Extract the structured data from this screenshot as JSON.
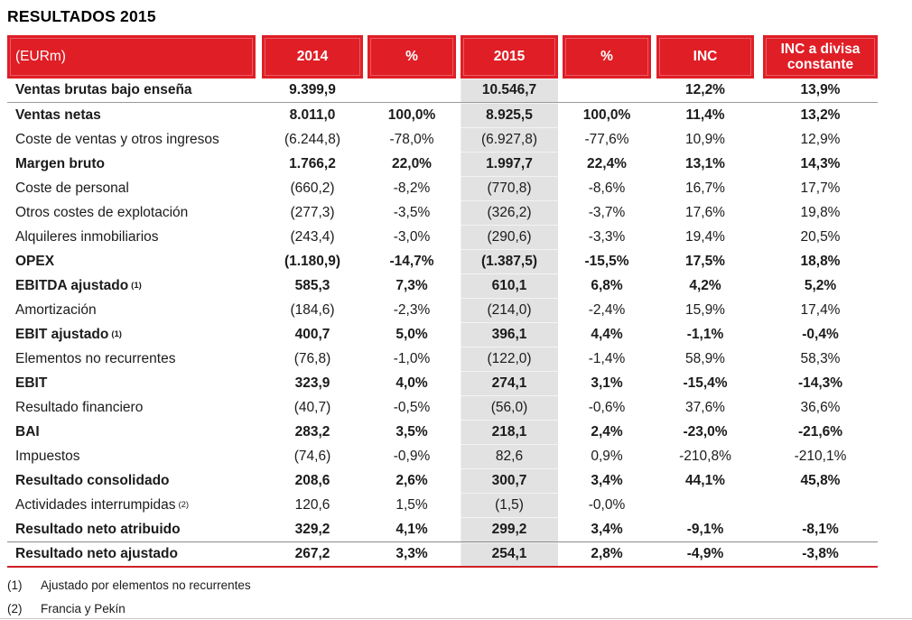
{
  "page": {
    "title": "RESULTADOS 2015"
  },
  "colors": {
    "header_red": "#e01e26",
    "band_gray": "#e2e2e2",
    "rule_red": "#d02028",
    "rule_gray": "#9b9b9b",
    "rule_dark": "#8a8a8a",
    "bottom_hairline": "#c9c9c9",
    "text": "#1b1b1b"
  },
  "table": {
    "unit_label": "(EURm)",
    "columns": [
      "2014",
      "%",
      "2015",
      "%",
      "INC",
      "INC a divisa constante"
    ],
    "rows": [
      {
        "label": "Ventas brutas bajo enseña",
        "sup": "",
        "bold": true,
        "rule_below": "gray",
        "values": [
          "9.399,9",
          "",
          "10.546,7",
          "",
          "12,2%",
          "13,9%"
        ]
      },
      {
        "label": "Ventas netas",
        "sup": "",
        "bold": true,
        "values": [
          "8.011,0",
          "100,0%",
          "8.925,5",
          "100,0%",
          "11,4%",
          "13,2%"
        ]
      },
      {
        "label": "Coste de ventas y otros ingresos",
        "sup": "",
        "bold": false,
        "values": [
          "(6.244,8)",
          "-78,0%",
          "(6.927,8)",
          "-77,6%",
          "10,9%",
          "12,9%"
        ]
      },
      {
        "label": "Margen bruto",
        "sup": "",
        "bold": true,
        "values": [
          "1.766,2",
          "22,0%",
          "1.997,7",
          "22,4%",
          "13,1%",
          "14,3%"
        ]
      },
      {
        "label": "Coste de personal",
        "sup": "",
        "bold": false,
        "values": [
          "(660,2)",
          "-8,2%",
          "(770,8)",
          "-8,6%",
          "16,7%",
          "17,7%"
        ]
      },
      {
        "label": "Otros costes de explotación",
        "sup": "",
        "bold": false,
        "values": [
          "(277,3)",
          "-3,5%",
          "(326,2)",
          "-3,7%",
          "17,6%",
          "19,8%"
        ]
      },
      {
        "label": "Alquileres inmobiliarios",
        "sup": "",
        "bold": false,
        "values": [
          "(243,4)",
          "-3,0%",
          "(290,6)",
          "-3,3%",
          "19,4%",
          "20,5%"
        ]
      },
      {
        "label": "OPEX",
        "sup": "",
        "bold": true,
        "values": [
          "(1.180,9)",
          "-14,7%",
          "(1.387,5)",
          "-15,5%",
          "17,5%",
          "18,8%"
        ]
      },
      {
        "label": "EBITDA ajustado",
        "sup": "(1)",
        "bold": true,
        "values": [
          "585,3",
          "7,3%",
          "610,1",
          "6,8%",
          "4,2%",
          "5,2%"
        ]
      },
      {
        "label": "Amortización",
        "sup": "",
        "bold": false,
        "values": [
          "(184,6)",
          "-2,3%",
          "(214,0)",
          "-2,4%",
          "15,9%",
          "17,4%"
        ]
      },
      {
        "label": "EBIT ajustado",
        "sup": "(1)",
        "bold": true,
        "values": [
          "400,7",
          "5,0%",
          "396,1",
          "4,4%",
          "-1,1%",
          "-0,4%"
        ]
      },
      {
        "label": "Elementos no recurrentes",
        "sup": "",
        "bold": false,
        "values": [
          "(76,8)",
          "-1,0%",
          "(122,0)",
          "-1,4%",
          "58,9%",
          "58,3%"
        ]
      },
      {
        "label": "EBIT",
        "sup": "",
        "bold": true,
        "values": [
          "323,9",
          "4,0%",
          "274,1",
          "3,1%",
          "-15,4%",
          "-14,3%"
        ]
      },
      {
        "label": "Resultado financiero",
        "sup": "",
        "bold": false,
        "values": [
          "(40,7)",
          "-0,5%",
          "(56,0)",
          "-0,6%",
          "37,6%",
          "36,6%"
        ]
      },
      {
        "label": "BAI",
        "sup": "",
        "bold": true,
        "values": [
          "283,2",
          "3,5%",
          "218,1",
          "2,4%",
          "-23,0%",
          "-21,6%"
        ]
      },
      {
        "label": "Impuestos",
        "sup": "",
        "bold": false,
        "values": [
          "(74,6)",
          "-0,9%",
          "82,6",
          "0,9%",
          "-210,8%",
          "-210,1%"
        ]
      },
      {
        "label": "Resultado consolidado",
        "sup": "",
        "bold": true,
        "values": [
          "208,6",
          "2,6%",
          "300,7",
          "3,4%",
          "44,1%",
          "45,8%"
        ]
      },
      {
        "label": "Actividades interrumpidas",
        "sup": "(2)",
        "bold": false,
        "values": [
          "120,6",
          "1,5%",
          "(1,5)",
          "-0,0%",
          "",
          ""
        ]
      },
      {
        "label": "Resultado neto atribuido",
        "sup": "",
        "bold": true,
        "values": [
          "329,2",
          "4,1%",
          "299,2",
          "3,4%",
          "-9,1%",
          "-8,1%"
        ]
      },
      {
        "label": "Resultado neto ajustado",
        "sup": "",
        "bold": true,
        "rule_above": "dark",
        "values": [
          "267,2",
          "3,3%",
          "254,1",
          "2,8%",
          "-4,9%",
          "-3,8%"
        ]
      }
    ]
  },
  "footnotes": [
    {
      "marker": "(1)",
      "text": "Ajustado por elementos no recurrentes"
    },
    {
      "marker": "(2)",
      "text": "Francia y Pekín"
    }
  ]
}
